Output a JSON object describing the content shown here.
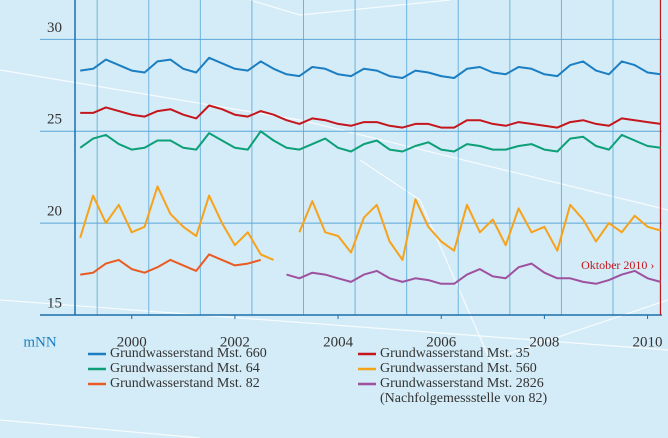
{
  "chart_data": {
    "type": "line",
    "y_unit": "mNN",
    "x": [
      1999.5,
      1999.75,
      2000,
      2000.25,
      2000.5,
      2000.75,
      2001,
      2001.25,
      2001.5,
      2001.75,
      2002,
      2002.25,
      2002.5,
      2002.75,
      2003,
      2003.25,
      2003.5,
      2003.75,
      2004,
      2004.25,
      2004.5,
      2004.75,
      2005,
      2005.25,
      2005.5,
      2005.75,
      2006,
      2006.25,
      2006.5,
      2006.75,
      2007,
      2007.25,
      2007.5,
      2007.75,
      2008,
      2008.25,
      2008.5,
      2008.75,
      2009,
      2009.25,
      2009.5,
      2009.75,
      2010,
      2010.25,
      2010.5,
      2010.75
    ],
    "series": [
      {
        "name": "Grundwasserstand Mst. 660",
        "color": "#1b7ec2",
        "values": [
          28.3,
          28.4,
          28.9,
          28.6,
          28.3,
          28.2,
          28.8,
          28.9,
          28.4,
          28.2,
          29.0,
          28.7,
          28.4,
          28.3,
          28.8,
          28.4,
          28.1,
          28.0,
          28.5,
          28.4,
          28.1,
          28.0,
          28.4,
          28.3,
          28.0,
          27.9,
          28.3,
          28.2,
          28.0,
          27.9,
          28.4,
          28.5,
          28.2,
          28.1,
          28.5,
          28.4,
          28.1,
          28.0,
          28.6,
          28.8,
          28.3,
          28.1,
          28.8,
          28.6,
          28.2,
          28.1
        ]
      },
      {
        "name": "Grundwasserstand Mst. 35",
        "color": "#c4161c",
        "values": [
          26.0,
          26.0,
          26.3,
          26.1,
          25.9,
          25.8,
          26.1,
          26.2,
          25.9,
          25.7,
          26.4,
          26.2,
          25.9,
          25.8,
          26.1,
          25.9,
          25.6,
          25.4,
          25.7,
          25.6,
          25.4,
          25.3,
          25.5,
          25.5,
          25.3,
          25.2,
          25.4,
          25.4,
          25.2,
          25.2,
          25.6,
          25.6,
          25.4,
          25.3,
          25.5,
          25.4,
          25.3,
          25.2,
          25.5,
          25.6,
          25.4,
          25.3,
          25.7,
          25.6,
          25.5,
          25.4
        ]
      },
      {
        "name": "Grundwasserstand Mst. 64",
        "color": "#0d9f78",
        "values": [
          24.1,
          24.6,
          24.8,
          24.3,
          24.0,
          24.1,
          24.5,
          24.5,
          24.1,
          24.0,
          24.9,
          24.5,
          24.1,
          24.0,
          25.0,
          24.5,
          24.1,
          24.0,
          24.3,
          24.6,
          24.1,
          23.9,
          24.3,
          24.5,
          24.0,
          23.9,
          24.2,
          24.4,
          24.0,
          23.9,
          24.3,
          24.2,
          24.0,
          24.0,
          24.2,
          24.3,
          24.0,
          23.9,
          24.6,
          24.7,
          24.2,
          24.0,
          24.8,
          24.5,
          24.2,
          24.1
        ]
      },
      {
        "name": "Grundwasserstand Mst. 560",
        "color": "#f7a21b",
        "values": [
          19.2,
          21.5,
          20.0,
          21.0,
          19.5,
          19.8,
          22.0,
          20.5,
          19.8,
          19.3,
          21.5,
          20.0,
          18.8,
          19.5,
          18.3,
          18.0,
          null,
          19.5,
          21.2,
          19.5,
          19.3,
          18.4,
          20.3,
          21.0,
          19.0,
          18.0,
          21.3,
          19.8,
          19.0,
          18.5,
          21.0,
          19.5,
          20.2,
          18.8,
          20.8,
          19.5,
          19.8,
          18.5,
          21.0,
          20.2,
          19.0,
          20.0,
          19.5,
          20.4,
          19.8,
          19.6
        ]
      },
      {
        "name": "Grundwasserstand Mst. 82",
        "color": "#ea5b24",
        "values": [
          17.2,
          17.3,
          17.8,
          18.0,
          17.5,
          17.3,
          17.6,
          18.0,
          17.7,
          17.4,
          18.3,
          18.0,
          17.7,
          17.8,
          18.0,
          null,
          null,
          null,
          null,
          null,
          null,
          null,
          null,
          null,
          null,
          null,
          null,
          null,
          null,
          null,
          null,
          null,
          null,
          null,
          null,
          null,
          null,
          null,
          null,
          null,
          null,
          null,
          null,
          null,
          null,
          null
        ]
      },
      {
        "name": "Grundwasserstand Mst. 2826",
        "note": "(Nachfolgemessstelle von 82)",
        "color": "#9e519f",
        "values": [
          null,
          null,
          null,
          null,
          null,
          null,
          null,
          null,
          null,
          null,
          null,
          null,
          null,
          null,
          null,
          null,
          17.2,
          17.0,
          17.3,
          17.2,
          17.0,
          16.8,
          17.2,
          17.4,
          17.0,
          16.8,
          17.0,
          16.9,
          16.7,
          16.7,
          17.2,
          17.5,
          17.1,
          17.0,
          17.6,
          17.8,
          17.3,
          17.0,
          17.0,
          16.8,
          16.7,
          16.9,
          17.2,
          17.4,
          17.0,
          16.8
        ]
      }
    ],
    "xlim": [
      1999.4,
      2010.78
    ],
    "ylim": [
      15,
      31.6
    ],
    "yticks": [
      15,
      20,
      25,
      30
    ],
    "xticks": [
      {
        "value": 2000.5,
        "label": "2000"
      },
      {
        "value": 2002.5,
        "label": "2002"
      },
      {
        "value": 2004.5,
        "label": "2004"
      },
      {
        "value": 2006.5,
        "label": "2006"
      },
      {
        "value": 2008.5,
        "label": "2008"
      },
      {
        "value": 2010.5,
        "label": "2010"
      }
    ],
    "x_gridlines": [
      1999.83,
      2000.83,
      2001.83,
      2002.83,
      2003.83,
      2004.83,
      2005.83,
      2006.83,
      2007.83,
      2008.83,
      2009.83
    ],
    "grid": true,
    "marker": {
      "x": 2010.75,
      "label": "Oktober 2010 ›",
      "color": "#c4161c"
    }
  }
}
